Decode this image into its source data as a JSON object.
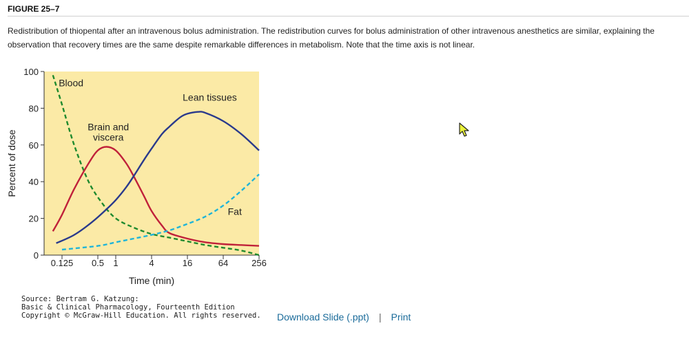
{
  "figure": {
    "title": "FIGURE 25–7",
    "caption": "Redistribution of thiopental after an intravenous bolus administration. The redistribution curves for bolus administration of other intravenous anesthetics are similar, explaining the observation that recovery times are the same despite remarkable differences in metabolism. Note that the time axis is not linear."
  },
  "source": {
    "line1": "Source: Bertram G. Katzung:",
    "line2": "Basic & Clinical Pharmacology, Fourteenth Edition",
    "line3": "Copyright © McGraw-Hill Education. All rights reserved."
  },
  "actions": {
    "download_label": "Download Slide (.ppt)",
    "separator": "|",
    "print_label": "Print"
  },
  "colors": {
    "plot_background": "#fbeaa6",
    "blood": "#1f8a2e",
    "brain": "#c0213a",
    "lean": "#2a3a8c",
    "fat": "#1fb4d8"
  },
  "chart_data": {
    "type": "line",
    "xlabel": "Time (min)",
    "ylabel": "Percent of dose",
    "ylim": [
      0,
      100
    ],
    "xscale": "log2",
    "xlim": [
      0.0625,
      256
    ],
    "y_ticks": [
      0,
      20,
      40,
      60,
      80,
      100
    ],
    "x_ticks": [
      {
        "value": 0.125,
        "label": "0.125"
      },
      {
        "value": 0.5,
        "label": "0.5"
      },
      {
        "value": 1,
        "label": "1"
      },
      {
        "value": 4,
        "label": "4"
      },
      {
        "value": 16,
        "label": "16"
      },
      {
        "value": 64,
        "label": "64"
      },
      {
        "value": 256,
        "label": "256"
      }
    ],
    "series": [
      {
        "key": "blood",
        "name": "Blood",
        "style": "dashed",
        "label_at": [
          0.11,
          92
        ],
        "x": [
          0.088,
          0.125,
          0.2,
          0.35,
          0.6,
          1,
          2,
          4,
          8,
          16,
          32,
          64,
          128,
          256
        ],
        "y": [
          98,
          82,
          60,
          40,
          28,
          20,
          15,
          11.5,
          9.5,
          7.5,
          5.5,
          4,
          2.5,
          0
        ]
      },
      {
        "key": "brain",
        "name": "Brain and\nviscera",
        "style": "solid",
        "label_at": [
          0.75,
          68
        ],
        "x": [
          0.088,
          0.125,
          0.2,
          0.35,
          0.5,
          0.7,
          1,
          1.5,
          2,
          3,
          4,
          6,
          8,
          16,
          32,
          64,
          128,
          256
        ],
        "y": [
          13,
          22,
          36,
          50,
          57,
          59,
          57,
          50,
          43,
          32,
          24,
          16,
          12,
          9,
          7,
          6,
          5.5,
          5
        ]
      },
      {
        "key": "lean",
        "name": "Lean tissues",
        "style": "solid",
        "label_at": [
          38,
          84
        ],
        "x": [
          0.1,
          0.2,
          0.4,
          0.7,
          1,
          1.5,
          2,
          3,
          4,
          6,
          8,
          12,
          16,
          24,
          32,
          64,
          128,
          256
        ],
        "y": [
          6.5,
          11,
          18,
          25,
          30,
          37,
          43,
          52,
          58,
          66,
          70,
          75,
          77,
          78,
          77.5,
          73,
          66,
          57
        ]
      },
      {
        "key": "fat",
        "name": "Fat",
        "style": "dashed",
        "label_at": [
          100,
          22
        ],
        "x": [
          0.125,
          0.5,
          1,
          2,
          4,
          8,
          16,
          32,
          64,
          128,
          256
        ],
        "y": [
          3,
          5,
          7,
          9,
          11,
          13.5,
          17,
          21,
          27,
          35,
          44
        ]
      }
    ]
  }
}
